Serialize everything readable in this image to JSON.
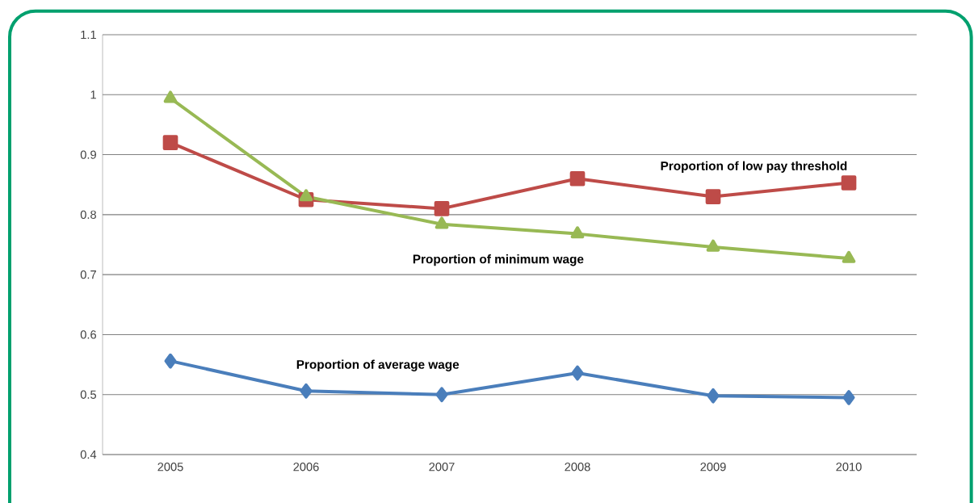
{
  "chart_data": {
    "type": "line",
    "categories": [
      "2005",
      "2006",
      "2007",
      "2008",
      "2009",
      "2010"
    ],
    "series": [
      {
        "name": "Proportion of average wage",
        "color": "#4a7ebb",
        "marker": "diamond",
        "values": [
          0.556,
          0.506,
          0.5,
          0.536,
          0.498,
          0.495
        ]
      },
      {
        "name": "Proportion of low pay threshold",
        "color": "#be4b48",
        "marker": "square",
        "values": [
          0.92,
          0.825,
          0.81,
          0.86,
          0.83,
          0.853
        ]
      },
      {
        "name": "Proportion of minimum wage",
        "color": "#98b954",
        "marker": "triangle",
        "values": [
          0.994,
          0.83,
          0.784,
          0.768,
          0.746,
          0.727
        ]
      }
    ],
    "ylim": [
      0.4,
      1.1
    ],
    "yticks": [
      0.4,
      0.5,
      0.6,
      0.7,
      0.8,
      0.9,
      1,
      1.1
    ],
    "grid": "y",
    "line_style": "solid",
    "legend": false
  }
}
